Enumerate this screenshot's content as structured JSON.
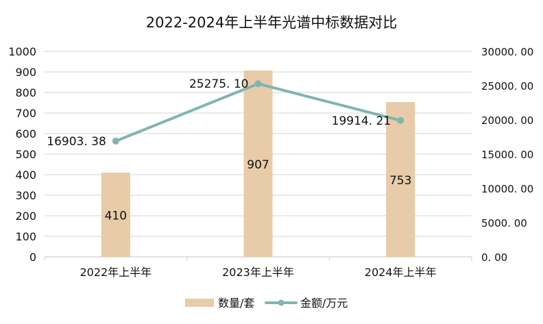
{
  "chart_data": {
    "type": "bar+line",
    "title": "2022-2024年上半年光谱中标数据对比",
    "categories": [
      "2022年上半年",
      "2023年上半年",
      "2024年上半年"
    ],
    "series": [
      {
        "name": "数量/套",
        "type": "bar",
        "axis": "left",
        "values": [
          410,
          907,
          753
        ],
        "labels": [
          "410",
          "907",
          "753"
        ],
        "color": "#e8cba8"
      },
      {
        "name": "金额/万元",
        "type": "line",
        "axis": "right",
        "values": [
          16903.38,
          25275.1,
          19914.21
        ],
        "labels": [
          "16903.38",
          "25275.10",
          "19914.21"
        ],
        "color": "#7fb5b0"
      }
    ],
    "left_axis": {
      "ylim": [
        0,
        1000
      ],
      "ticks": [
        "0",
        "100",
        "200",
        "300",
        "400",
        "500",
        "600",
        "700",
        "800",
        "900",
        "1000"
      ]
    },
    "right_axis": {
      "ylim": [
        0,
        30000
      ],
      "ticks": [
        "0.00",
        "5000.00",
        "10000.00",
        "15000.00",
        "20000.00",
        "25000.00",
        "30000.00"
      ]
    },
    "grid": true,
    "legend": "bottom"
  }
}
